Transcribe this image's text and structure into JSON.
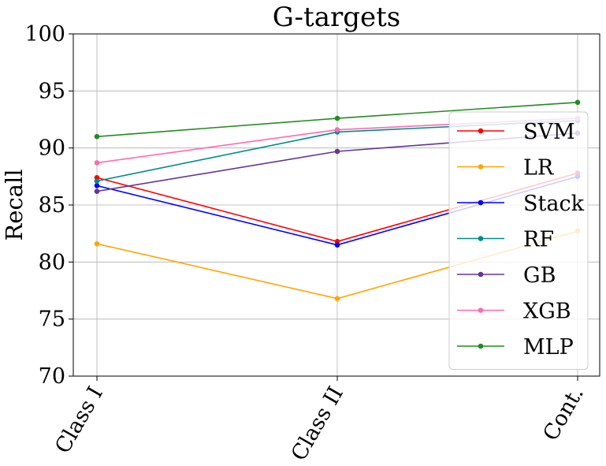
{
  "chart_data": {
    "type": "line",
    "title": "G-targets",
    "xlabel": "",
    "ylabel": "Recall",
    "categories": [
      "Class I",
      "Class II",
      "Cont."
    ],
    "ylim": [
      70,
      100
    ],
    "yticks": [
      70,
      75,
      80,
      85,
      90,
      95,
      100
    ],
    "grid": true,
    "legend_position": "right",
    "series": [
      {
        "name": "SVM",
        "color": "#ff0000",
        "values": [
          87.4,
          81.8,
          87.8
        ]
      },
      {
        "name": "LR",
        "color": "#ffa500",
        "values": [
          81.6,
          76.8,
          82.7
        ]
      },
      {
        "name": "Stack",
        "color": "#0000ff",
        "values": [
          86.7,
          81.5,
          87.5
        ]
      },
      {
        "name": "RF",
        "color": "#008b8b",
        "values": [
          87.1,
          91.4,
          92.4
        ]
      },
      {
        "name": "GB",
        "color": "#663399",
        "values": [
          86.2,
          89.7,
          91.3
        ]
      },
      {
        "name": "XGB",
        "color": "#ff69b4",
        "values": [
          88.7,
          91.6,
          92.6
        ]
      },
      {
        "name": "MLP",
        "color": "#228b22",
        "values": [
          91.0,
          92.6,
          94.0
        ]
      }
    ]
  }
}
